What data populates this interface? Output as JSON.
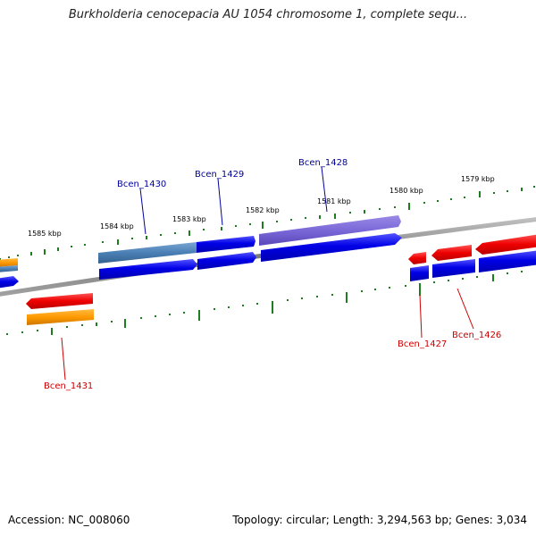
{
  "title": "Burkholderia cenocepacia AU 1054 chromosome 1, complete sequ...",
  "footer": {
    "accession": "Accession: NC_008060",
    "topology": "Topology: circular; Length: 3,294,563 bp; Genes: 3,034"
  },
  "colors": {
    "background": "#ffffff",
    "backbone": "#8a8a8a",
    "tick": "#1e7d1e",
    "blue_gene": "#0000e6",
    "steel_gene": "#4a7fb5",
    "purple_gene": "#7b68d8",
    "red_gene": "#ee0000",
    "orange_gene": "#ff9900",
    "label_blue": "#000099",
    "label_red": "#cc0000"
  },
  "kbp_labels": [
    "1585 kbp",
    "1584 kbp",
    "1583 kbp",
    "1582 kbp",
    "1581 kbp",
    "1580 kbp",
    "1579 kbp"
  ],
  "gene_labels": [
    {
      "text": "Bcen_1430",
      "color": "label_blue"
    },
    {
      "text": "Bcen_1429",
      "color": "label_blue"
    },
    {
      "text": "Bcen_1428",
      "color": "label_blue"
    },
    {
      "text": "Bcen_1431",
      "color": "label_red"
    },
    {
      "text": "Bcen_1427",
      "color": "label_red"
    },
    {
      "text": "Bcen_1426",
      "color": "label_red"
    }
  ]
}
